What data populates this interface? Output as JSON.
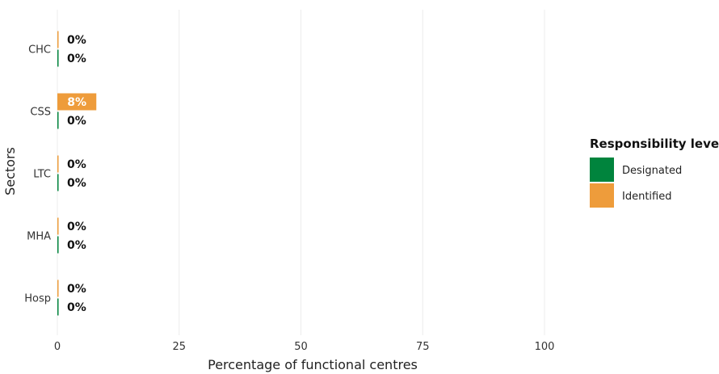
{
  "chart_data": {
    "type": "bar",
    "orientation": "horizontal",
    "categories": [
      "CHC",
      "CSS",
      "LTC",
      "MHA",
      "Hosp"
    ],
    "series": [
      {
        "name": "Identified",
        "values": [
          0,
          8,
          0,
          0,
          0
        ],
        "labels": [
          "0%",
          "8%",
          "0%",
          "0%",
          "0%"
        ],
        "color": "#EE9C3B"
      },
      {
        "name": "Designated",
        "values": [
          0,
          0,
          0,
          0,
          0
        ],
        "labels": [
          "0%",
          "0%",
          "0%",
          "0%",
          "0%"
        ],
        "color": "#00843D"
      }
    ],
    "xlabel": "Percentage of functional centres",
    "ylabel": "Sectors",
    "xlim": [
      0,
      100
    ],
    "xticks": [
      0,
      25,
      50,
      75,
      100
    ],
    "xtick_labels": [
      "0",
      "25",
      "50",
      "75",
      "100"
    ],
    "grid": "vertical",
    "legend": {
      "title": "Responsibility level",
      "position": "right",
      "entries": [
        {
          "label": "Designated",
          "color": "#00843D"
        },
        {
          "label": "Identified",
          "color": "#EE9C3B"
        }
      ]
    }
  }
}
